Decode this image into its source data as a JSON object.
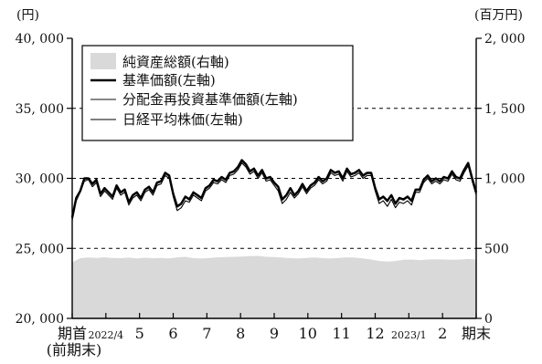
{
  "chart_data": {
    "type": "line",
    "left_axis": {
      "unit": "(円)",
      "ylim": [
        20000,
        40000
      ],
      "tick_values": [
        20000,
        25000,
        30000,
        35000,
        40000
      ],
      "tick_labels": [
        "20, 000",
        "25, 000",
        "30, 000",
        "35, 000",
        "40, 000"
      ]
    },
    "right_axis": {
      "unit": "(百万円)",
      "ylim": [
        0,
        2000
      ],
      "tick_values": [
        0,
        500,
        1000,
        1500,
        2000
      ],
      "tick_labels": [
        "0",
        "500",
        "1, 000",
        "1, 500",
        "2, 000"
      ]
    },
    "x_axis": {
      "labels": [
        {
          "text": "期首",
          "sub": "(前期末)",
          "pos": 0,
          "style": "large"
        },
        {
          "text": "2022/4",
          "pos": 0.0833,
          "style": "small"
        },
        {
          "text": "5",
          "pos": 0.1667,
          "style": "large"
        },
        {
          "text": "6",
          "pos": 0.25,
          "style": "large"
        },
        {
          "text": "7",
          "pos": 0.3333,
          "style": "large"
        },
        {
          "text": "8",
          "pos": 0.4167,
          "style": "large"
        },
        {
          "text": "9",
          "pos": 0.5,
          "style": "large"
        },
        {
          "text": "10",
          "pos": 0.5833,
          "style": "large"
        },
        {
          "text": "11",
          "pos": 0.6667,
          "style": "large"
        },
        {
          "text": "12",
          "pos": 0.75,
          "style": "large"
        },
        {
          "text": "2023/1",
          "pos": 0.8333,
          "style": "small"
        },
        {
          "text": "2",
          "pos": 0.9167,
          "style": "large"
        },
        {
          "text": "期末",
          "pos": 1.0,
          "style": "large"
        }
      ]
    },
    "grid": {
      "dashed_values": [
        25000,
        30000,
        35000
      ]
    },
    "legend": {
      "placement": "top-left"
    },
    "series": [
      {
        "name": "純資産総額(右軸)",
        "axis": "right",
        "style": "area",
        "color": "#d9d9d9",
        "x": [
          0,
          0.02,
          0.04,
          0.06,
          0.08,
          0.1,
          0.12,
          0.14,
          0.16,
          0.18,
          0.2,
          0.22,
          0.24,
          0.26,
          0.28,
          0.3,
          0.32,
          0.34,
          0.36,
          0.38,
          0.4,
          0.42,
          0.44,
          0.46,
          0.48,
          0.5,
          0.52,
          0.54,
          0.56,
          0.58,
          0.6,
          0.62,
          0.64,
          0.66,
          0.68,
          0.7,
          0.72,
          0.74,
          0.76,
          0.78,
          0.8,
          0.82,
          0.84,
          0.86,
          0.88,
          0.9,
          0.92,
          0.94,
          0.96,
          0.98,
          1.0
        ],
        "values": [
          400,
          430,
          435,
          432,
          436,
          432,
          430,
          434,
          428,
          433,
          430,
          431,
          428,
          436,
          440,
          430,
          428,
          432,
          436,
          438,
          440,
          442,
          445,
          446,
          440,
          438,
          434,
          430,
          428,
          432,
          435,
          430,
          428,
          432,
          436,
          434,
          428,
          420,
          410,
          406,
          410,
          418,
          420,
          416,
          420,
          422,
          420,
          418,
          420,
          424,
          420
        ]
      },
      {
        "name": "基準価額(左軸)",
        "axis": "left",
        "style": "line",
        "color": "#000000",
        "width": 2.4,
        "x": [
          0,
          0.01,
          0.02,
          0.03,
          0.04,
          0.05,
          0.06,
          0.07,
          0.08,
          0.09,
          0.1,
          0.11,
          0.12,
          0.13,
          0.14,
          0.15,
          0.16,
          0.17,
          0.18,
          0.19,
          0.2,
          0.21,
          0.22,
          0.23,
          0.24,
          0.25,
          0.26,
          0.27,
          0.28,
          0.29,
          0.3,
          0.31,
          0.32,
          0.33,
          0.34,
          0.35,
          0.36,
          0.37,
          0.38,
          0.39,
          0.4,
          0.41,
          0.42,
          0.43,
          0.44,
          0.45,
          0.46,
          0.47,
          0.48,
          0.49,
          0.5,
          0.51,
          0.52,
          0.53,
          0.54,
          0.55,
          0.56,
          0.57,
          0.58,
          0.59,
          0.6,
          0.61,
          0.62,
          0.63,
          0.64,
          0.65,
          0.66,
          0.67,
          0.68,
          0.69,
          0.7,
          0.71,
          0.72,
          0.73,
          0.74,
          0.75,
          0.76,
          0.77,
          0.78,
          0.79,
          0.8,
          0.81,
          0.82,
          0.83,
          0.84,
          0.85,
          0.86,
          0.87,
          0.88,
          0.89,
          0.9,
          0.91,
          0.92,
          0.93,
          0.94,
          0.95,
          0.96,
          0.97,
          0.98,
          0.99,
          1.0
        ],
        "values": [
          27200,
          28600,
          29100,
          30000,
          30000,
          29600,
          29900,
          28900,
          29300,
          29000,
          28700,
          29500,
          29000,
          29200,
          28300,
          28800,
          29000,
          28600,
          29200,
          29400,
          29000,
          29700,
          29800,
          30400,
          30200,
          28900,
          28000,
          28200,
          28700,
          28500,
          29000,
          28800,
          28600,
          29300,
          29500,
          29900,
          29800,
          30100,
          29900,
          30400,
          30500,
          30800,
          31300,
          31000,
          30500,
          30700,
          30200,
          30600,
          30000,
          30100,
          29700,
          29400,
          28500,
          28800,
          29300,
          28800,
          29100,
          29600,
          29100,
          29500,
          29700,
          30100,
          29800,
          30000,
          30600,
          30400,
          30500,
          30000,
          30700,
          30300,
          30400,
          30600,
          30200,
          30400,
          30400,
          29300,
          28500,
          28700,
          28400,
          28800,
          28200,
          28600,
          28500,
          28700,
          28400,
          29200,
          29200,
          29900,
          30200,
          29800,
          30000,
          29800,
          30100,
          30000,
          30500,
          30100,
          30000,
          30600,
          31100,
          30000,
          29000
        ]
      },
      {
        "name": "分配金再投資基準価額(左軸)",
        "axis": "left",
        "style": "line",
        "color": "#888888",
        "width": 1.6,
        "offset_from": "基準価額(左軸)"
      },
      {
        "name": "日経平均株価(左軸)",
        "axis": "left",
        "style": "line",
        "color": "#000000",
        "width": 1.1,
        "x": [
          0,
          0.01,
          0.02,
          0.03,
          0.04,
          0.05,
          0.06,
          0.07,
          0.08,
          0.09,
          0.1,
          0.11,
          0.12,
          0.13,
          0.14,
          0.15,
          0.16,
          0.17,
          0.18,
          0.19,
          0.2,
          0.21,
          0.22,
          0.23,
          0.24,
          0.25,
          0.26,
          0.27,
          0.28,
          0.29,
          0.3,
          0.31,
          0.32,
          0.33,
          0.34,
          0.35,
          0.36,
          0.37,
          0.38,
          0.39,
          0.4,
          0.41,
          0.42,
          0.43,
          0.44,
          0.45,
          0.46,
          0.47,
          0.48,
          0.49,
          0.5,
          0.51,
          0.52,
          0.53,
          0.54,
          0.55,
          0.56,
          0.57,
          0.58,
          0.59,
          0.6,
          0.61,
          0.62,
          0.63,
          0.64,
          0.65,
          0.66,
          0.67,
          0.68,
          0.69,
          0.7,
          0.71,
          0.72,
          0.73,
          0.74,
          0.75,
          0.76,
          0.77,
          0.78,
          0.79,
          0.8,
          0.81,
          0.82,
          0.83,
          0.84,
          0.85,
          0.86,
          0.87,
          0.88,
          0.89,
          0.9,
          0.91,
          0.92,
          0.93,
          0.94,
          0.95,
          0.96,
          0.97,
          0.98,
          0.99,
          1.0
        ],
        "values": [
          27000,
          28400,
          29000,
          29800,
          29900,
          29400,
          29700,
          28700,
          29100,
          28800,
          28500,
          29300,
          28800,
          29000,
          28100,
          28600,
          28800,
          28400,
          29000,
          29200,
          28800,
          29500,
          29600,
          30200,
          30000,
          28700,
          27700,
          27900,
          28400,
          28300,
          28800,
          28600,
          28400,
          29100,
          29300,
          29700,
          29600,
          29900,
          29700,
          30200,
          30300,
          30600,
          31100,
          30800,
          30300,
          30500,
          30000,
          30400,
          29800,
          29900,
          29500,
          29100,
          28200,
          28500,
          29000,
          28600,
          28900,
          29400,
          28900,
          29300,
          29500,
          29900,
          29600,
          29800,
          30400,
          30200,
          30300,
          29800,
          30500,
          30100,
          30200,
          30400,
          30000,
          30200,
          30200,
          29100,
          28200,
          28400,
          28000,
          28500,
          27900,
          28300,
          28200,
          28400,
          28100,
          29000,
          29000,
          29700,
          30000,
          29600,
          29800,
          29600,
          29900,
          29800,
          30300,
          29900,
          29800,
          30400,
          30900,
          29800,
          28800
        ]
      }
    ]
  }
}
